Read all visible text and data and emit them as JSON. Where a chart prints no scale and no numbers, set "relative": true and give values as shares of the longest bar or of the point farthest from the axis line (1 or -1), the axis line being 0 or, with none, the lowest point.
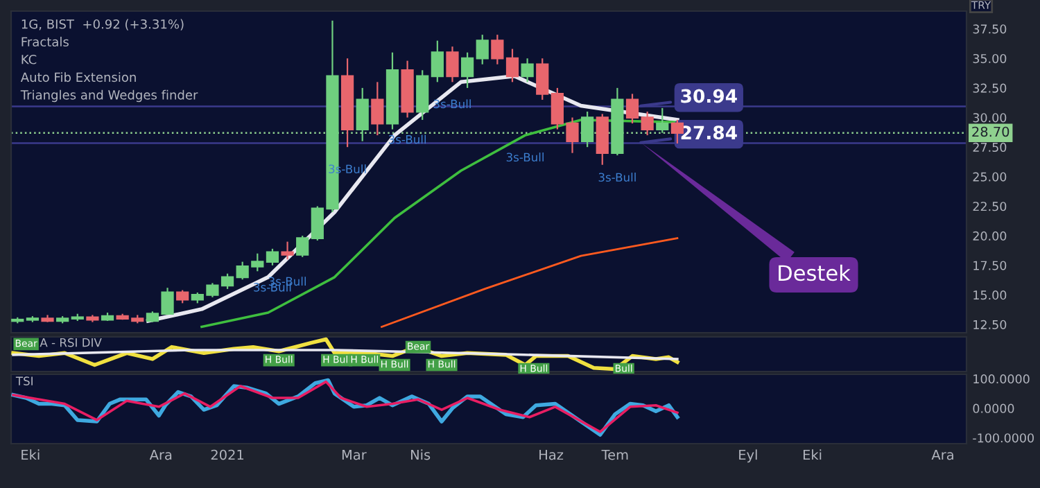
{
  "chart_data": [
    {
      "type": "candlestick",
      "ylabel": "TRY",
      "tick_labels": "y",
      "grid": false,
      "annotations": [
        "1G, BIST  +0.92 (+3.31%)",
        "Fractals",
        "KC",
        "Auto Fib Extension",
        "Triangles and Wedges finder",
        "Destek",
        {
          "text": "3s-Bull",
          "x": "2021-01-29",
          "y": 18.0
        },
        {
          "text": "3s-Bull",
          "x": "2021-01-22",
          "y": 17.5
        },
        {
          "text": "3s-Bull",
          "x": "2021-02-26",
          "y": 27.5
        },
        {
          "text": "3s-Bull",
          "x": "2021-03-26",
          "y": 30.0
        },
        {
          "text": "3s-Bull",
          "x": "2021-04-16",
          "y": 33.0
        },
        {
          "text": "3s-Bull",
          "x": "2021-05-20",
          "y": 28.5
        },
        {
          "text": "3s-Bull",
          "x": "2021-07-02",
          "y": 26.8
        }
      ],
      "x": [
        "2020-09-25",
        "2020-10-02",
        "2020-10-09",
        "2020-10-16",
        "2020-10-23",
        "2020-10-30",
        "2020-11-06",
        "2020-11-13",
        "2020-11-20",
        "2020-11-27",
        "2020-12-04",
        "2020-12-11",
        "2020-12-18",
        "2020-12-25",
        "2021-01-01",
        "2021-01-08",
        "2021-01-15",
        "2021-01-22",
        "2021-01-29",
        "2021-02-05",
        "2021-02-12",
        "2021-02-19",
        "2021-02-26",
        "2021-03-05",
        "2021-03-12",
        "2021-03-19",
        "2021-03-26",
        "2021-04-02",
        "2021-04-09",
        "2021-04-16",
        "2021-04-23",
        "2021-04-30",
        "2021-05-07",
        "2021-05-14",
        "2021-05-21",
        "2021-05-28",
        "2021-06-04",
        "2021-06-11",
        "2021-06-18",
        "2021-06-25",
        "2021-07-02",
        "2021-07-09",
        "2021-07-16",
        "2021-07-23",
        "2021-07-30"
      ],
      "ohlc": [
        [
          12.8,
          13.1,
          12.6,
          12.9
        ],
        [
          12.9,
          13.2,
          12.7,
          13.0
        ],
        [
          13.0,
          13.3,
          12.7,
          12.8
        ],
        [
          12.8,
          13.2,
          12.6,
          13.0
        ],
        [
          13.0,
          13.4,
          12.8,
          13.1
        ],
        [
          13.1,
          13.3,
          12.7,
          12.9
        ],
        [
          12.9,
          13.5,
          12.8,
          13.2
        ],
        [
          13.2,
          13.4,
          12.9,
          13.0
        ],
        [
          13.0,
          13.3,
          12.6,
          12.8
        ],
        [
          12.8,
          13.6,
          12.7,
          13.4
        ],
        [
          13.4,
          15.6,
          13.3,
          15.2
        ],
        [
          15.2,
          15.4,
          14.3,
          14.6
        ],
        [
          14.6,
          15.2,
          14.3,
          15.0
        ],
        [
          15.0,
          16.0,
          14.8,
          15.8
        ],
        [
          15.8,
          16.8,
          15.5,
          16.5
        ],
        [
          16.5,
          17.8,
          16.3,
          17.4
        ],
        [
          17.4,
          18.5,
          17.0,
          17.8
        ],
        [
          17.8,
          18.9,
          17.5,
          18.6
        ],
        [
          18.6,
          19.5,
          18.0,
          18.4
        ],
        [
          18.4,
          20.0,
          18.2,
          19.8
        ],
        [
          19.8,
          22.5,
          19.6,
          22.3
        ],
        [
          22.3,
          38.2,
          22.0,
          33.5
        ],
        [
          33.5,
          35.0,
          27.5,
          29.0
        ],
        [
          29.0,
          32.5,
          28.0,
          31.5
        ],
        [
          31.5,
          33.0,
          28.5,
          29.5
        ],
        [
          29.5,
          35.5,
          29.0,
          34.0
        ],
        [
          34.0,
          34.8,
          30.0,
          30.5
        ],
        [
          30.5,
          34.0,
          29.8,
          33.5
        ],
        [
          33.5,
          36.5,
          33.0,
          35.5
        ],
        [
          35.5,
          36.0,
          33.0,
          33.5
        ],
        [
          33.5,
          35.5,
          32.5,
          35.0
        ],
        [
          35.0,
          37.0,
          34.5,
          36.5
        ],
        [
          36.5,
          37.0,
          34.5,
          35.0
        ],
        [
          35.0,
          35.8,
          33.0,
          33.5
        ],
        [
          33.5,
          35.0,
          33.0,
          34.5
        ],
        [
          34.5,
          35.0,
          31.5,
          32.0
        ],
        [
          32.0,
          32.5,
          29.0,
          29.5
        ],
        [
          29.5,
          30.0,
          27.0,
          28.0
        ],
        [
          28.0,
          30.5,
          27.5,
          30.0
        ],
        [
          30.0,
          30.3,
          26.0,
          27.0
        ],
        [
          27.0,
          32.5,
          26.8,
          31.5
        ],
        [
          31.5,
          32.0,
          29.5,
          30.0
        ],
        [
          30.0,
          30.5,
          28.5,
          29.0
        ],
        [
          29.0,
          30.8,
          28.7,
          29.5
        ],
        [
          29.5,
          29.8,
          27.8,
          28.7
        ]
      ],
      "series": [
        {
          "type": "line",
          "color": "#e8e8f0",
          "x": [
            "2020-11-25",
            "2020-12-20",
            "2021-01-20",
            "2021-02-20",
            "2021-03-20",
            "2021-04-20",
            "2021-05-15",
            "2021-06-15",
            "2021-07-30"
          ],
          "values": [
            12.8,
            13.8,
            16.5,
            22.0,
            28.5,
            33.0,
            33.5,
            31.0,
            29.8
          ]
        },
        {
          "type": "line",
          "color": "#3fbf3f",
          "x": [
            "2020-12-20",
            "2021-01-20",
            "2021-02-20",
            "2021-03-20",
            "2021-04-20",
            "2021-05-20",
            "2021-06-15",
            "2021-07-30"
          ],
          "values": [
            12.3,
            13.5,
            16.5,
            21.5,
            25.5,
            28.5,
            29.8,
            29.6
          ]
        },
        {
          "type": "line",
          "color": "#ff5a1f",
          "x": [
            "2021-03-14",
            "2021-05-01",
            "2021-06-15",
            "2021-07-30"
          ],
          "values": [
            12.3,
            15.5,
            18.3,
            19.8
          ]
        }
      ],
      "ref_lines": [
        {
          "axis": "y",
          "value": 30.94,
          "label": "30.94",
          "color": "#3b3a8c",
          "line_style": "solid"
        },
        {
          "axis": "y",
          "value": 27.84,
          "label": "27.84",
          "color": "#3b3a8c",
          "line_style": "solid"
        },
        {
          "axis": "y",
          "value": 28.7,
          "label": "28.70",
          "color": "#8fd18f",
          "line_style": "dotted"
        }
      ],
      "xlim": [
        "2020-09-22",
        "2021-12-12"
      ],
      "ylim": [
        11.8,
        39.0
      ],
      "yticks": [
        {
          "value": 12.5,
          "label": "12.50"
        },
        {
          "value": 15,
          "label": "15.00"
        },
        {
          "value": 17.5,
          "label": "17.50"
        },
        {
          "value": 20,
          "label": "20.00"
        },
        {
          "value": 22.5,
          "label": "22.50"
        },
        {
          "value": 25,
          "label": "25.00"
        },
        {
          "value": 27.5,
          "label": "27.50"
        },
        {
          "value": 30,
          "label": "30.00"
        },
        {
          "value": 32.5,
          "label": "32.50"
        },
        {
          "value": 35,
          "label": "35.00"
        },
        {
          "value": 37.5,
          "label": "37.50"
        }
      ]
    },
    {
      "type": "line",
      "title": "A - RSI DIV",
      "relative": true,
      "tick_labels": false,
      "grid": false,
      "xlim": [
        "2020-09-22",
        "2021-12-12"
      ],
      "annotations": [
        {
          "text": "Bear",
          "x": "2020-09-29",
          "y": 0.84
        },
        {
          "text": "H Bull",
          "x": "2021-01-25",
          "y": 0.3
        },
        {
          "text": "H Bull",
          "x": "2021-02-21",
          "y": 0.3
        },
        {
          "text": "H Bull",
          "x": "2021-03-06",
          "y": 0.3
        },
        {
          "text": "H Bull",
          "x": "2021-03-20",
          "y": 0.14
        },
        {
          "text": "Bear",
          "x": "2021-03-31",
          "y": 0.74
        },
        {
          "text": "H Bull",
          "x": "2021-04-11",
          "y": 0.14
        },
        {
          "text": "H Bull",
          "x": "2021-05-24",
          "y": 0.0
        },
        {
          "text": "Bull",
          "x": "2021-07-05",
          "y": 0.0
        }
      ],
      "series": [
        {
          "color": "#f0e040",
          "x": [
            "2020-09-23",
            "2020-10-05",
            "2020-10-17",
            "2020-10-31",
            "2020-11-15",
            "2020-11-27",
            "2020-12-06",
            "2020-12-21",
            "2021-01-04",
            "2021-01-13",
            "2021-01-25",
            "2021-02-09",
            "2021-02-16",
            "2021-02-20",
            "2021-03-07",
            "2021-03-19",
            "2021-03-30",
            "2021-04-11",
            "2021-04-23",
            "2021-05-11",
            "2021-05-20",
            "2021-05-25",
            "2021-06-09",
            "2021-06-21",
            "2021-07-01",
            "2021-07-09",
            "2021-07-20",
            "2021-07-26",
            "2021-07-30"
          ],
          "values": [
            0.54,
            0.44,
            0.54,
            0.14,
            0.54,
            0.34,
            0.74,
            0.54,
            0.68,
            0.74,
            0.6,
            0.88,
            1.0,
            0.54,
            0.54,
            0.44,
            0.74,
            0.44,
            0.54,
            0.48,
            0.14,
            0.44,
            0.44,
            0.04,
            0.0,
            0.44,
            0.34,
            0.4,
            0.24
          ]
        },
        {
          "color": "#e8e8f0",
          "x": [
            "2020-09-23",
            "2020-12-15",
            "2021-02-20",
            "2021-05-11",
            "2021-07-30"
          ],
          "values": [
            0.48,
            0.64,
            0.64,
            0.5,
            0.34
          ]
        }
      ]
    },
    {
      "type": "line",
      "title": "TSI",
      "grid": false,
      "xlim": [
        "2020-09-22",
        "2021-12-12"
      ],
      "ylim": [
        -120,
        115
      ],
      "yticks": [
        {
          "value": 100,
          "label": "100.0000"
        },
        {
          "value": 0,
          "label": "0.0000"
        },
        {
          "value": -100,
          "label": "-100.0000"
        }
      ],
      "xticks": [
        {
          "value": "2020-10-01",
          "label": "Eki"
        },
        {
          "value": "2020-12-01",
          "label": "Ara"
        },
        {
          "value": "2021-01-01",
          "label": "2021"
        },
        {
          "value": "2021-03-01",
          "label": "Mar"
        },
        {
          "value": "2021-04-01",
          "label": "Nis"
        },
        {
          "value": "2021-06-01",
          "label": "Haz"
        },
        {
          "value": "2021-07-01",
          "label": "Tem"
        },
        {
          "value": "2021-09-01",
          "label": "Eyl"
        },
        {
          "value": "2021-10-01",
          "label": "Eki"
        },
        {
          "value": "2021-12-01",
          "label": "Ara"
        }
      ],
      "series": [
        {
          "color": "#3fa9e0",
          "x": [
            "2020-09-23",
            "2020-09-29",
            "2020-10-05",
            "2020-10-11",
            "2020-10-17",
            "2020-10-23",
            "2020-11-01",
            "2020-11-07",
            "2020-11-12",
            "2020-11-24",
            "2020-11-30",
            "2020-12-03",
            "2020-12-09",
            "2020-12-15",
            "2020-12-21",
            "2020-12-27",
            "2021-01-04",
            "2021-01-10",
            "2021-01-19",
            "2021-01-25",
            "2021-02-03",
            "2021-02-11",
            "2021-02-17",
            "2021-02-20",
            "2021-03-01",
            "2021-03-07",
            "2021-03-13",
            "2021-03-19",
            "2021-03-28",
            "2021-04-05",
            "2021-04-11",
            "2021-04-16",
            "2021-04-23",
            "2021-04-29",
            "2021-05-05",
            "2021-05-11",
            "2021-05-19",
            "2021-05-25",
            "2021-06-03",
            "2021-06-12",
            "2021-06-24",
            "2021-07-01",
            "2021-07-08",
            "2021-07-14",
            "2021-07-20",
            "2021-07-26",
            "2021-07-30"
          ],
          "values": [
            45,
            35,
            15,
            15,
            10,
            -40,
            -45,
            15,
            30,
            30,
            -25,
            10,
            55,
            40,
            -5,
            10,
            75,
            70,
            50,
            15,
            40,
            85,
            95,
            50,
            5,
            10,
            35,
            10,
            40,
            15,
            -45,
            0,
            40,
            40,
            10,
            -20,
            -30,
            10,
            15,
            -30,
            -90,
            -20,
            15,
            10,
            -10,
            10,
            -30
          ]
        },
        {
          "color": "#e91e63",
          "x": [
            "2020-09-23",
            "2020-10-17",
            "2020-11-01",
            "2020-11-15",
            "2020-11-30",
            "2020-12-12",
            "2020-12-24",
            "2021-01-07",
            "2021-01-22",
            "2021-02-03",
            "2021-02-16",
            "2021-02-23",
            "2021-03-07",
            "2021-03-19",
            "2021-03-31",
            "2021-04-11",
            "2021-04-23",
            "2021-05-08",
            "2021-05-22",
            "2021-06-03",
            "2021-06-24",
            "2021-07-08",
            "2021-07-20",
            "2021-07-30"
          ],
          "values": [
            45,
            15,
            -40,
            25,
            5,
            50,
            5,
            75,
            35,
            35,
            90,
            35,
            5,
            15,
            30,
            -5,
            35,
            -5,
            -30,
            5,
            -80,
            5,
            10,
            -15
          ]
        }
      ]
    }
  ]
}
